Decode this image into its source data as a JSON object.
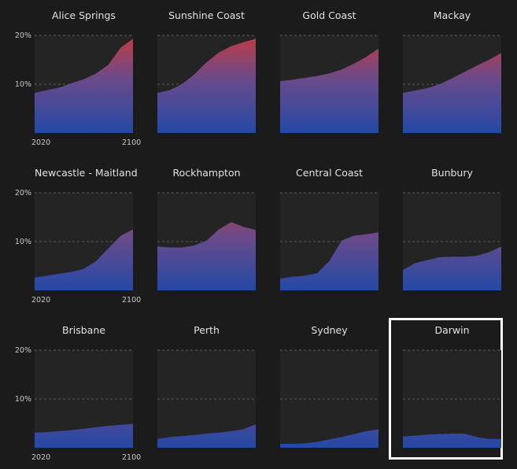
{
  "chart_data": [
    {
      "type": "area",
      "title": "Alice Springs",
      "x": [
        2020,
        2030,
        2040,
        2050,
        2060,
        2070,
        2080,
        2090,
        2100
      ],
      "values": [
        8.2,
        8.8,
        9.3,
        10.2,
        11.0,
        12.2,
        14.0,
        17.5,
        19.3
      ],
      "ylim": [
        0,
        20
      ],
      "yticks": [
        "20%",
        "10%"
      ],
      "xticks": [
        "2020",
        "2100"
      ]
    },
    {
      "type": "area",
      "title": "Sunshine Coast",
      "x": [
        2020,
        2030,
        2040,
        2050,
        2060,
        2070,
        2080,
        2090,
        2100
      ],
      "values": [
        8.2,
        8.8,
        10.0,
        12.0,
        14.5,
        16.5,
        17.8,
        18.6,
        19.3
      ],
      "ylim": [
        0,
        20
      ],
      "yticks": [],
      "xticks": []
    },
    {
      "type": "area",
      "title": "Gold Coast",
      "x": [
        2020,
        2030,
        2040,
        2050,
        2060,
        2070,
        2080,
        2090,
        2100
      ],
      "values": [
        10.6,
        10.9,
        11.3,
        11.7,
        12.2,
        13.0,
        14.2,
        15.6,
        17.3
      ],
      "ylim": [
        0,
        20
      ],
      "yticks": [],
      "xticks": []
    },
    {
      "type": "area",
      "title": "Mackay",
      "x": [
        2020,
        2030,
        2040,
        2050,
        2060,
        2070,
        2080,
        2090,
        2100
      ],
      "values": [
        8.2,
        8.7,
        9.2,
        10.0,
        11.2,
        12.5,
        13.8,
        15.0,
        16.4
      ],
      "ylim": [
        0,
        20
      ],
      "yticks": [],
      "xticks": []
    },
    {
      "type": "area",
      "title": "Newcastle - Maitland",
      "x": [
        2020,
        2030,
        2040,
        2050,
        2060,
        2070,
        2080,
        2090,
        2100
      ],
      "values": [
        2.6,
        3.0,
        3.4,
        3.8,
        4.4,
        6.0,
        8.6,
        11.2,
        12.5
      ],
      "ylim": [
        0,
        20
      ],
      "yticks": [
        "20%",
        "10%"
      ],
      "xticks": [
        "2020",
        "2100"
      ]
    },
    {
      "type": "area",
      "title": "Rockhampton",
      "x": [
        2020,
        2030,
        2040,
        2050,
        2060,
        2070,
        2080,
        2090,
        2100
      ],
      "values": [
        9.0,
        8.8,
        8.8,
        9.2,
        10.2,
        12.5,
        14.0,
        13.0,
        12.4
      ],
      "ylim": [
        0,
        20
      ],
      "yticks": [],
      "xticks": []
    },
    {
      "type": "area",
      "title": "Central Coast",
      "x": [
        2020,
        2030,
        2040,
        2050,
        2060,
        2070,
        2080,
        2090,
        2100
      ],
      "values": [
        2.4,
        2.8,
        3.0,
        3.5,
        6.0,
        10.2,
        11.2,
        11.5,
        11.9
      ],
      "ylim": [
        0,
        20
      ],
      "yticks": [],
      "xticks": []
    },
    {
      "type": "area",
      "title": "Bunbury",
      "x": [
        2020,
        2030,
        2040,
        2050,
        2060,
        2070,
        2080,
        2090,
        2100
      ],
      "values": [
        4.2,
        5.6,
        6.2,
        6.8,
        6.9,
        6.9,
        7.1,
        7.8,
        9.0
      ],
      "ylim": [
        0,
        20
      ],
      "yticks": [],
      "xticks": []
    },
    {
      "type": "area",
      "title": "Brisbane",
      "x": [
        2020,
        2030,
        2040,
        2050,
        2060,
        2070,
        2080,
        2090,
        2100
      ],
      "values": [
        3.1,
        3.2,
        3.4,
        3.6,
        3.9,
        4.2,
        4.5,
        4.7,
        4.9
      ],
      "ylim": [
        0,
        20
      ],
      "yticks": [
        "20%",
        "10%"
      ],
      "xticks": [
        "2020",
        "2100"
      ]
    },
    {
      "type": "area",
      "title": "Perth",
      "x": [
        2020,
        2030,
        2040,
        2050,
        2060,
        2070,
        2080,
        2090,
        2100
      ],
      "values": [
        1.8,
        2.2,
        2.4,
        2.6,
        2.9,
        3.1,
        3.4,
        3.8,
        4.8
      ],
      "ylim": [
        0,
        20
      ],
      "yticks": [],
      "xticks": []
    },
    {
      "type": "area",
      "title": "Sydney",
      "x": [
        2020,
        2030,
        2040,
        2050,
        2060,
        2070,
        2080,
        2090,
        2100
      ],
      "values": [
        0.8,
        0.8,
        0.9,
        1.2,
        1.7,
        2.2,
        2.8,
        3.4,
        3.8
      ],
      "ylim": [
        0,
        20
      ],
      "yticks": [],
      "xticks": []
    },
    {
      "type": "area",
      "title": "Darwin",
      "x": [
        2020,
        2030,
        2040,
        2050,
        2060,
        2070,
        2080,
        2090,
        2100
      ],
      "values": [
        2.3,
        2.5,
        2.7,
        2.8,
        2.9,
        2.9,
        2.2,
        1.8,
        1.8
      ],
      "ylim": [
        0,
        20
      ],
      "yticks": [],
      "xticks": [],
      "highlighted": true
    }
  ]
}
